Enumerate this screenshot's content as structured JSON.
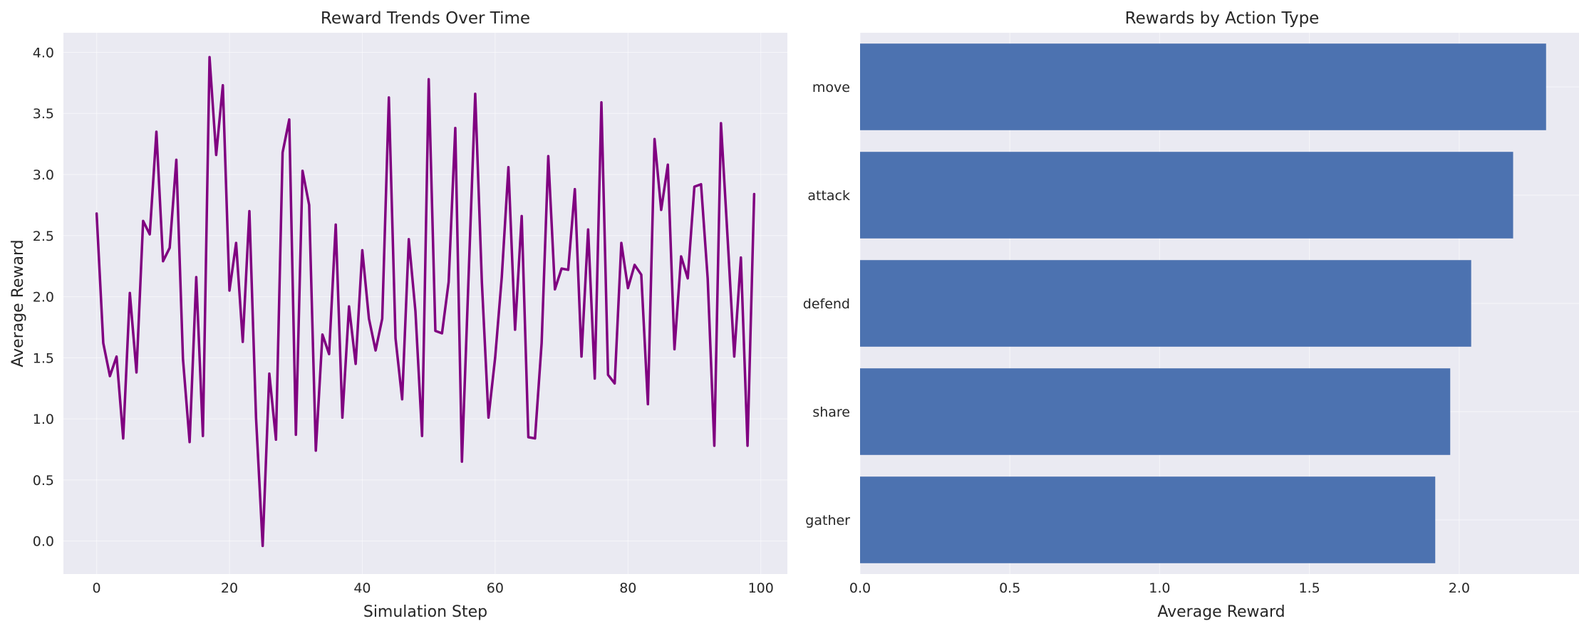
{
  "chart_data": [
    {
      "type": "line",
      "title": "Reward Trends Over Time",
      "xlabel": "Simulation Step",
      "ylabel": "Average Reward",
      "xlim": [
        -5,
        104
      ],
      "ylim": [
        -0.27,
        4.16
      ],
      "xticks": [
        0,
        20,
        40,
        60,
        80,
        100
      ],
      "yticks": [
        0.0,
        0.5,
        1.0,
        1.5,
        2.0,
        2.5,
        3.0,
        3.5,
        4.0
      ],
      "xtick_labels": [
        "0",
        "20",
        "40",
        "60",
        "80",
        "100"
      ],
      "ytick_labels": [
        "0.0",
        "0.5",
        "1.0",
        "1.5",
        "2.0",
        "2.5",
        "3.0",
        "3.5",
        "4.0"
      ],
      "grid": true,
      "color": "#800080",
      "x": [
        0,
        1,
        2,
        3,
        4,
        5,
        6,
        7,
        8,
        9,
        10,
        11,
        12,
        13,
        14,
        15,
        16,
        17,
        18,
        19,
        20,
        21,
        22,
        23,
        24,
        25,
        26,
        27,
        28,
        29,
        30,
        31,
        32,
        33,
        34,
        35,
        36,
        37,
        38,
        39,
        40,
        41,
        42,
        43,
        44,
        45,
        46,
        47,
        48,
        49,
        50,
        51,
        52,
        53,
        54,
        55,
        56,
        57,
        58,
        59,
        60,
        61,
        62,
        63,
        64,
        65,
        66,
        67,
        68,
        69,
        70,
        71,
        72,
        73,
        74,
        75,
        76,
        77,
        78,
        79,
        80,
        81,
        82,
        83,
        84,
        85,
        86,
        87,
        88,
        89,
        90,
        91,
        92,
        93,
        94,
        95,
        96,
        97,
        98,
        99
      ],
      "y": [
        2.68,
        1.62,
        1.35,
        1.51,
        0.84,
        2.03,
        1.38,
        2.62,
        2.51,
        3.35,
        2.29,
        2.4,
        3.12,
        1.49,
        0.81,
        2.16,
        0.86,
        3.96,
        3.16,
        3.73,
        2.05,
        2.44,
        1.63,
        2.7,
        1.01,
        -0.04,
        1.37,
        0.83,
        3.18,
        3.45,
        0.87,
        3.03,
        2.75,
        0.74,
        1.69,
        1.53,
        2.59,
        1.01,
        1.92,
        1.45,
        2.38,
        1.82,
        1.56,
        1.82,
        3.63,
        1.66,
        1.16,
        2.47,
        1.88,
        0.86,
        3.78,
        1.72,
        1.7,
        2.12,
        3.38,
        0.65,
        2.16,
        3.66,
        2.12,
        1.01,
        1.5,
        2.16,
        3.06,
        1.73,
        2.66,
        0.85,
        0.84,
        1.62,
        3.15,
        2.06,
        2.23,
        2.22,
        2.88,
        1.51,
        2.55,
        1.33,
        3.59,
        1.36,
        1.29,
        2.44,
        2.07,
        2.26,
        2.18,
        1.12,
        3.29,
        2.71,
        3.08,
        1.57,
        2.33,
        2.15,
        2.9,
        2.92,
        2.15,
        0.78,
        3.42,
        2.48,
        1.51,
        2.32,
        0.78,
        2.84
      ]
    },
    {
      "type": "bar",
      "orientation": "horizontal",
      "title": "Rewards by Action Type",
      "xlabel": "Average Reward",
      "ylabel": "",
      "xlim": [
        0,
        2.4
      ],
      "xticks": [
        0.0,
        0.5,
        1.0,
        1.5,
        2.0
      ],
      "xtick_labels": [
        "0.0",
        "0.5",
        "1.0",
        "1.5",
        "2.0"
      ],
      "grid": true,
      "color": "#4c72b0",
      "categories": [
        "move",
        "attack",
        "defend",
        "share",
        "gather"
      ],
      "values": [
        2.29,
        2.18,
        2.04,
        1.97,
        1.92
      ]
    }
  ]
}
